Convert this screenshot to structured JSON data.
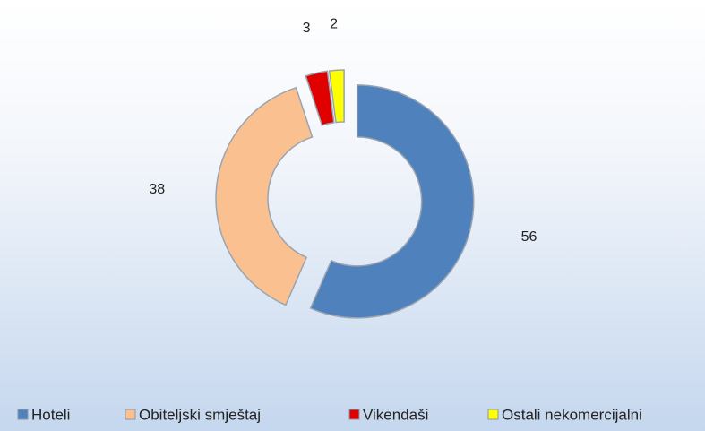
{
  "chart_data": {
    "type": "donut",
    "categories": [
      "Hoteli",
      "Obiteljski  smještaj",
      "Vikendaši",
      "Ostali nekomercijalni"
    ],
    "values": [
      56,
      38,
      3,
      2
    ],
    "colors": [
      "#4f81bd",
      "#fac090",
      "#e00000",
      "#ffff00"
    ]
  }
}
